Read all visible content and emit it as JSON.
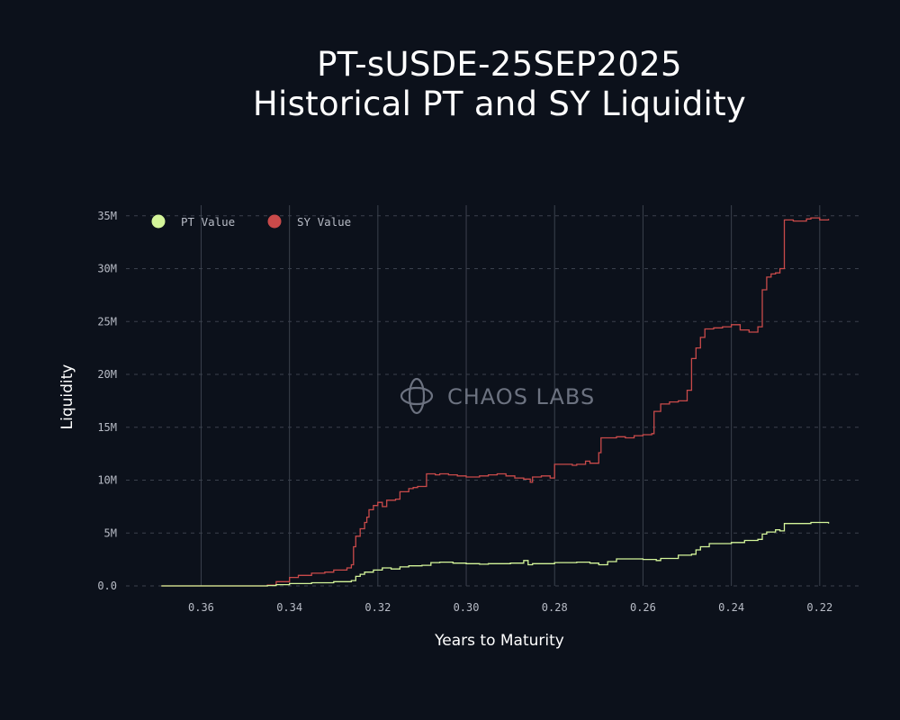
{
  "chart_data": {
    "type": "line",
    "title": "PT-sUSDE-25SEP2025",
    "subtitle": "Historical PT and SY Liquidity",
    "xlabel": "Years to Maturity",
    "ylabel": "Liquidity",
    "xlim": [
      0.377,
      0.211
    ],
    "ylim": [
      0,
      36000000
    ],
    "x_reversed": true,
    "x_ticks": [
      0.36,
      0.34,
      0.32,
      0.3,
      0.28,
      0.26,
      0.24,
      0.22
    ],
    "x_tick_labels": [
      "0.36",
      "0.34",
      "0.32",
      "0.30",
      "0.28",
      "0.26",
      "0.24",
      "0.22"
    ],
    "y_ticks": [
      0,
      5000000,
      10000000,
      15000000,
      20000000,
      25000000,
      30000000,
      35000000
    ],
    "y_tick_labels": [
      "0.0",
      "5M",
      "10M",
      "15M",
      "20M",
      "25M",
      "30M",
      "35M"
    ],
    "grid": {
      "x": "solid",
      "y": "dashed"
    },
    "legend_position": "top-left",
    "watermark": "CHAOS LABS",
    "series": [
      {
        "name": "PT Value",
        "color": "#d4f59a",
        "x": [
          0.369,
          0.345,
          0.343,
          0.34,
          0.335,
          0.33,
          0.326,
          0.325,
          0.324,
          0.323,
          0.321,
          0.319,
          0.317,
          0.315,
          0.313,
          0.31,
          0.308,
          0.306,
          0.303,
          0.3,
          0.297,
          0.295,
          0.29,
          0.287,
          0.286,
          0.285,
          0.28,
          0.275,
          0.272,
          0.27,
          0.268,
          0.266,
          0.26,
          0.257,
          0.256,
          0.252,
          0.249,
          0.248,
          0.247,
          0.245,
          0.24,
          0.237,
          0.234,
          0.233,
          0.232,
          0.23,
          0.229,
          0.228,
          0.222,
          0.218
        ],
        "y": [
          0,
          30000,
          120000,
          220000,
          300000,
          400000,
          500000,
          900000,
          1100000,
          1300000,
          1500000,
          1700000,
          1600000,
          1800000,
          1900000,
          1950000,
          2200000,
          2250000,
          2150000,
          2100000,
          2050000,
          2100000,
          2150000,
          2400000,
          2000000,
          2100000,
          2200000,
          2250000,
          2150000,
          2000000,
          2300000,
          2550000,
          2500000,
          2400000,
          2600000,
          2900000,
          3000000,
          3400000,
          3700000,
          4000000,
          4100000,
          4300000,
          4400000,
          4900000,
          5100000,
          5300000,
          5200000,
          5900000,
          6000000,
          5900000
        ]
      },
      {
        "name": "SY Value",
        "color": "#c94a4a",
        "x": [
          0.369,
          0.345,
          0.343,
          0.34,
          0.338,
          0.335,
          0.332,
          0.33,
          0.327,
          0.326,
          0.3255,
          0.325,
          0.324,
          0.323,
          0.3225,
          0.322,
          0.321,
          0.32,
          0.319,
          0.318,
          0.316,
          0.315,
          0.313,
          0.312,
          0.311,
          0.309,
          0.307,
          0.306,
          0.304,
          0.302,
          0.3,
          0.297,
          0.295,
          0.293,
          0.291,
          0.289,
          0.287,
          0.2855,
          0.285,
          0.283,
          0.281,
          0.28,
          0.276,
          0.275,
          0.273,
          0.272,
          0.27,
          0.2695,
          0.266,
          0.264,
          0.262,
          0.26,
          0.258,
          0.2575,
          0.256,
          0.254,
          0.252,
          0.25,
          0.249,
          0.248,
          0.247,
          0.246,
          0.244,
          0.242,
          0.24,
          0.238,
          0.236,
          0.234,
          0.233,
          0.232,
          0.231,
          0.23,
          0.229,
          0.228,
          0.226,
          0.223,
          0.222,
          0.22,
          0.218
        ],
        "y": [
          0,
          80000,
          400000,
          800000,
          1000000,
          1200000,
          1300000,
          1500000,
          1700000,
          2000000,
          3700000,
          4700000,
          5400000,
          6000000,
          6500000,
          7200000,
          7600000,
          7900000,
          7500000,
          8100000,
          8200000,
          8900000,
          9200000,
          9300000,
          9400000,
          10600000,
          10500000,
          10600000,
          10500000,
          10400000,
          10300000,
          10400000,
          10500000,
          10600000,
          10400000,
          10200000,
          10100000,
          9800000,
          10300000,
          10400000,
          10200000,
          11500000,
          11400000,
          11500000,
          11800000,
          11600000,
          12600000,
          14000000,
          14100000,
          14000000,
          14200000,
          14300000,
          14400000,
          16500000,
          17200000,
          17400000,
          17500000,
          18500000,
          21500000,
          22500000,
          23500000,
          24300000,
          24400000,
          24500000,
          24700000,
          24200000,
          24000000,
          24500000,
          28000000,
          29200000,
          29500000,
          29600000,
          30000000,
          34600000,
          34500000,
          34700000,
          34800000,
          34600000,
          34700000
        ]
      }
    ]
  }
}
